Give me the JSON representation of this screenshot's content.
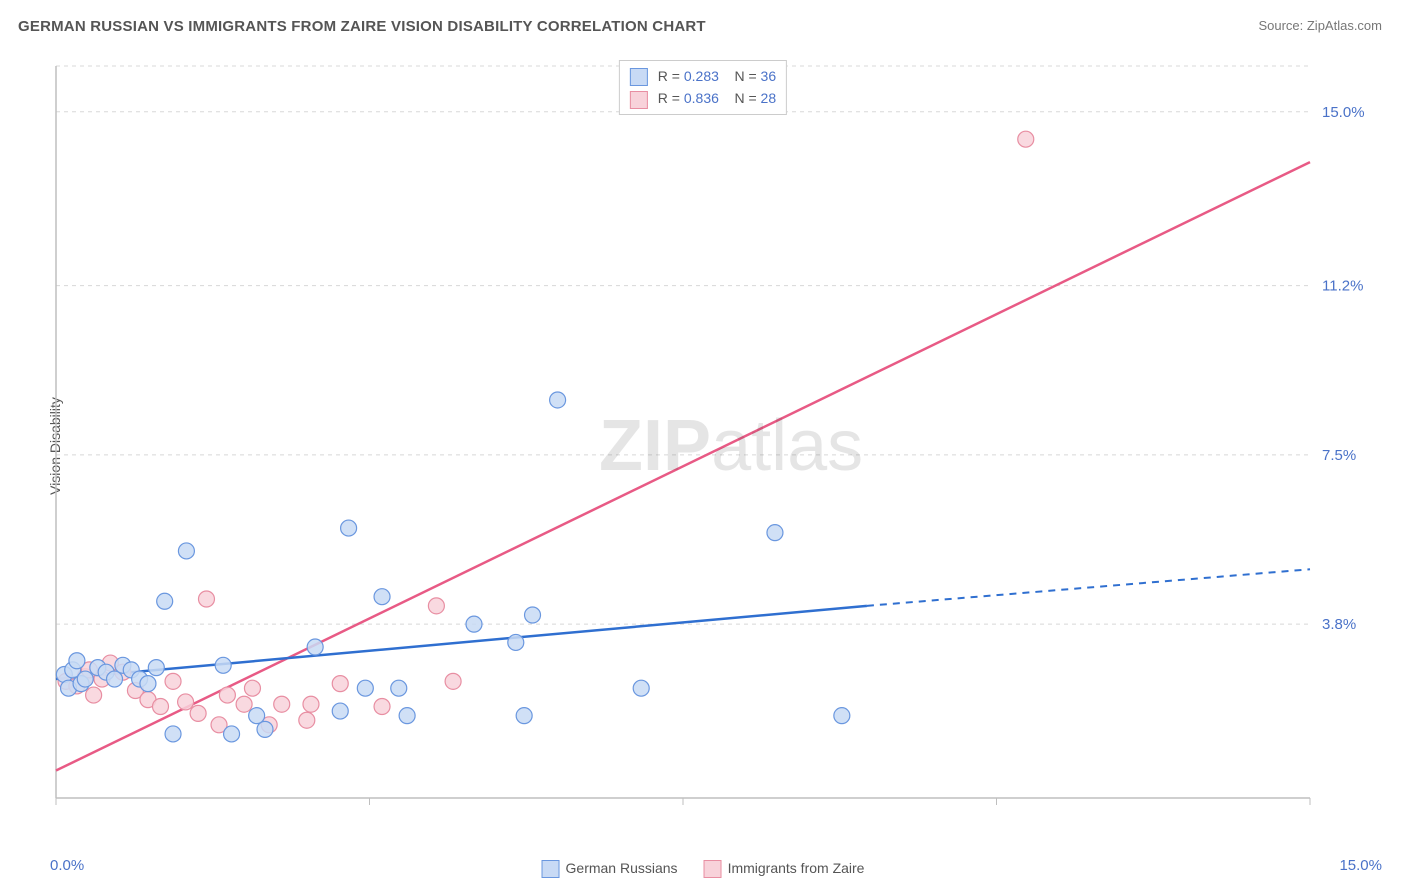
{
  "title": "GERMAN RUSSIAN VS IMMIGRANTS FROM ZAIRE VISION DISABILITY CORRELATION CHART",
  "source_label": "Source: ",
  "source_link": "ZipAtlas.com",
  "ylabel": "Vision Disability",
  "watermark_bold": "ZIP",
  "watermark_rest": "atlas",
  "x_axis": {
    "min": 0.0,
    "max": 15.0,
    "min_label": "0.0%",
    "max_label": "15.0%"
  },
  "y_axis": {
    "min": 0.0,
    "max": 16.0,
    "ticks": [
      3.8,
      7.5,
      11.2,
      15.0
    ],
    "tick_labels": [
      "3.8%",
      "7.5%",
      "11.2%",
      "15.0%"
    ]
  },
  "grid_color": "#d8d8d8",
  "axis_color": "#bfbfbf",
  "tick_color": "#4a72c8",
  "text_color": "#555555",
  "background_color": "#ffffff",
  "series_a": {
    "label": "German Russians",
    "fill": "#c8daf5",
    "stroke": "#6a97df",
    "line_color": "#2f6fd0",
    "r_value": "0.283",
    "n_value": "36",
    "marker_radius": 8,
    "trend": {
      "p1": [
        0.0,
        2.6
      ],
      "p2_solid": [
        9.7,
        4.2
      ],
      "p2_dash": [
        15.0,
        5.0
      ]
    },
    "points": [
      [
        0.1,
        2.7
      ],
      [
        0.15,
        2.4
      ],
      [
        0.2,
        2.8
      ],
      [
        0.25,
        3.0
      ],
      [
        0.3,
        2.5
      ],
      [
        0.35,
        2.6
      ],
      [
        0.5,
        2.85
      ],
      [
        0.6,
        2.75
      ],
      [
        0.7,
        2.6
      ],
      [
        0.8,
        2.9
      ],
      [
        0.9,
        2.8
      ],
      [
        1.0,
        2.6
      ],
      [
        1.1,
        2.5
      ],
      [
        1.2,
        2.85
      ],
      [
        1.3,
        4.3
      ],
      [
        1.4,
        1.4
      ],
      [
        1.56,
        5.4
      ],
      [
        2.0,
        2.9
      ],
      [
        2.1,
        1.4
      ],
      [
        2.4,
        1.8
      ],
      [
        2.5,
        1.5
      ],
      [
        3.1,
        3.3
      ],
      [
        3.4,
        1.9
      ],
      [
        3.5,
        5.9
      ],
      [
        3.7,
        2.4
      ],
      [
        3.9,
        4.4
      ],
      [
        4.1,
        2.4
      ],
      [
        4.2,
        1.8
      ],
      [
        5.0,
        3.8
      ],
      [
        5.5,
        3.4
      ],
      [
        5.6,
        1.8
      ],
      [
        5.7,
        4.0
      ],
      [
        6.0,
        8.7
      ],
      [
        7.0,
        2.4
      ],
      [
        8.6,
        5.8
      ],
      [
        9.4,
        1.8
      ]
    ]
  },
  "series_b": {
    "label": "Immigrants from Zaire",
    "fill": "#f8d2da",
    "stroke": "#e88ea2",
    "line_color": "#e85a85",
    "r_value": "0.836",
    "n_value": "28",
    "marker_radius": 8,
    "trend": {
      "p1": [
        0.0,
        0.6
      ],
      "p2_solid": [
        15.0,
        13.9
      ]
    },
    "points": [
      [
        0.12,
        2.55
      ],
      [
        0.25,
        2.45
      ],
      [
        0.35,
        2.65
      ],
      [
        0.4,
        2.8
      ],
      [
        0.45,
        2.25
      ],
      [
        0.55,
        2.6
      ],
      [
        0.65,
        2.95
      ],
      [
        0.8,
        2.75
      ],
      [
        0.95,
        2.35
      ],
      [
        1.1,
        2.15
      ],
      [
        1.25,
        2.0
      ],
      [
        1.4,
        2.55
      ],
      [
        1.55,
        2.1
      ],
      [
        1.7,
        1.85
      ],
      [
        1.8,
        4.35
      ],
      [
        1.95,
        1.6
      ],
      [
        2.05,
        2.25
      ],
      [
        2.25,
        2.05
      ],
      [
        2.35,
        2.4
      ],
      [
        2.55,
        1.6
      ],
      [
        2.7,
        2.05
      ],
      [
        3.0,
        1.7
      ],
      [
        3.05,
        2.05
      ],
      [
        3.4,
        2.5
      ],
      [
        3.9,
        2.0
      ],
      [
        4.55,
        4.2
      ],
      [
        4.75,
        2.55
      ],
      [
        11.6,
        14.4
      ]
    ]
  },
  "legend_r_label": "R = ",
  "legend_n_label": "N = "
}
